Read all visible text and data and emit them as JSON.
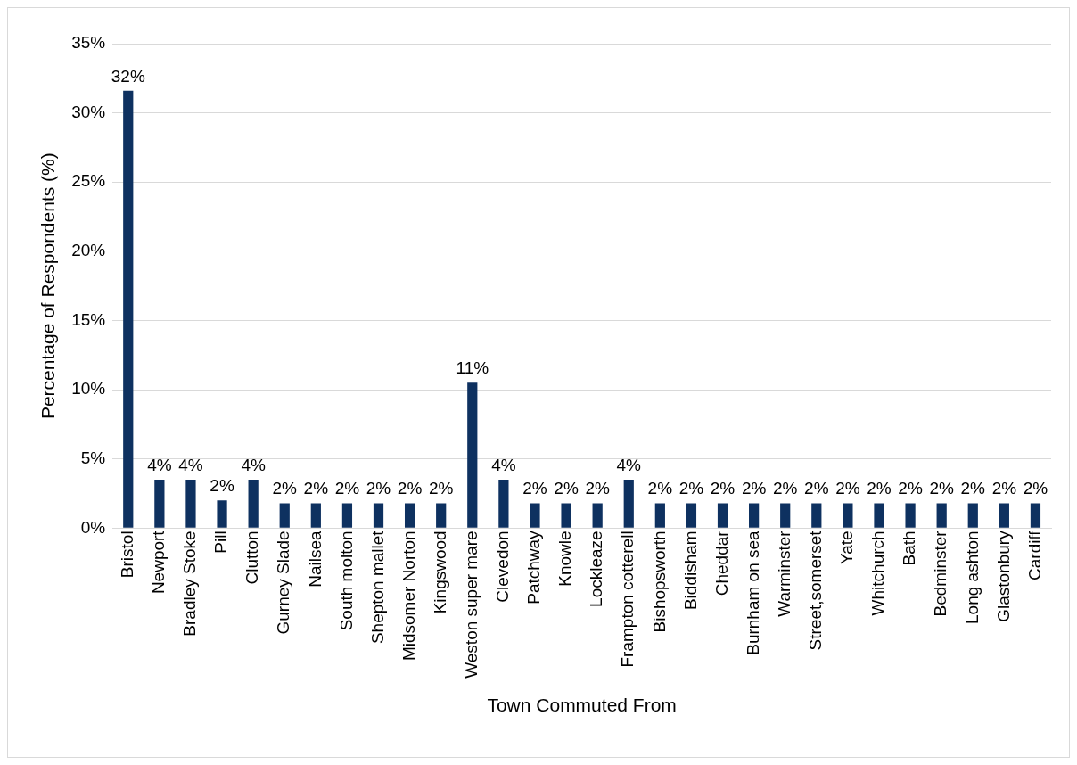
{
  "chart_data": {
    "type": "bar",
    "xlabel": "Town Commuted From",
    "ylabel": "Percentage of Respondents (%)",
    "categories": [
      "Bristol",
      "Newport",
      "Bradley Stoke",
      "Pill",
      "Clutton",
      "Gurney Slade",
      "Nailsea",
      "South molton",
      "Shepton mallet",
      "Midsomer Norton",
      "Kingswood",
      "Weston super mare",
      "Clevedon",
      "Patchway",
      "Knowle",
      "Lockleaze",
      "Frampton cotterell",
      "Bishopsworth",
      "Biddisham",
      "Cheddar",
      "Burnham on sea",
      "Warminster",
      "Street,somerset",
      "Yate",
      "Whitchurch",
      "Bath",
      "Bedminster",
      "Long ashton",
      "Glastonbury",
      "Cardiff"
    ],
    "values": [
      31.6,
      3.5,
      3.5,
      2.0,
      3.5,
      1.8,
      1.8,
      1.8,
      1.8,
      1.8,
      1.8,
      10.5,
      3.5,
      1.8,
      1.8,
      1.8,
      3.5,
      1.8,
      1.8,
      1.8,
      1.8,
      1.8,
      1.8,
      1.8,
      1.8,
      1.8,
      1.8,
      1.8,
      1.8,
      1.8
    ],
    "value_labels": [
      "32%",
      "4%",
      "4%",
      "2%",
      "4%",
      "2%",
      "2%",
      "2%",
      "2%",
      "2%",
      "2%",
      "11%",
      "4%",
      "2%",
      "2%",
      "2%",
      "4%",
      "2%",
      "2%",
      "2%",
      "2%",
      "2%",
      "2%",
      "2%",
      "2%",
      "2%",
      "2%",
      "2%",
      "2%",
      "2%"
    ],
    "color": "#0e3160",
    "ylim": [
      0,
      35
    ],
    "yticks": [
      {
        "value": 0,
        "label": "0%"
      },
      {
        "value": 5,
        "label": "5%"
      },
      {
        "value": 10,
        "label": "10%"
      },
      {
        "value": 15,
        "label": "15%"
      },
      {
        "value": 20,
        "label": "20%"
      },
      {
        "value": 25,
        "label": "25%"
      },
      {
        "value": 30,
        "label": "30%"
      },
      {
        "value": 35,
        "label": "35%"
      }
    ],
    "grid": "y",
    "legend": false
  }
}
